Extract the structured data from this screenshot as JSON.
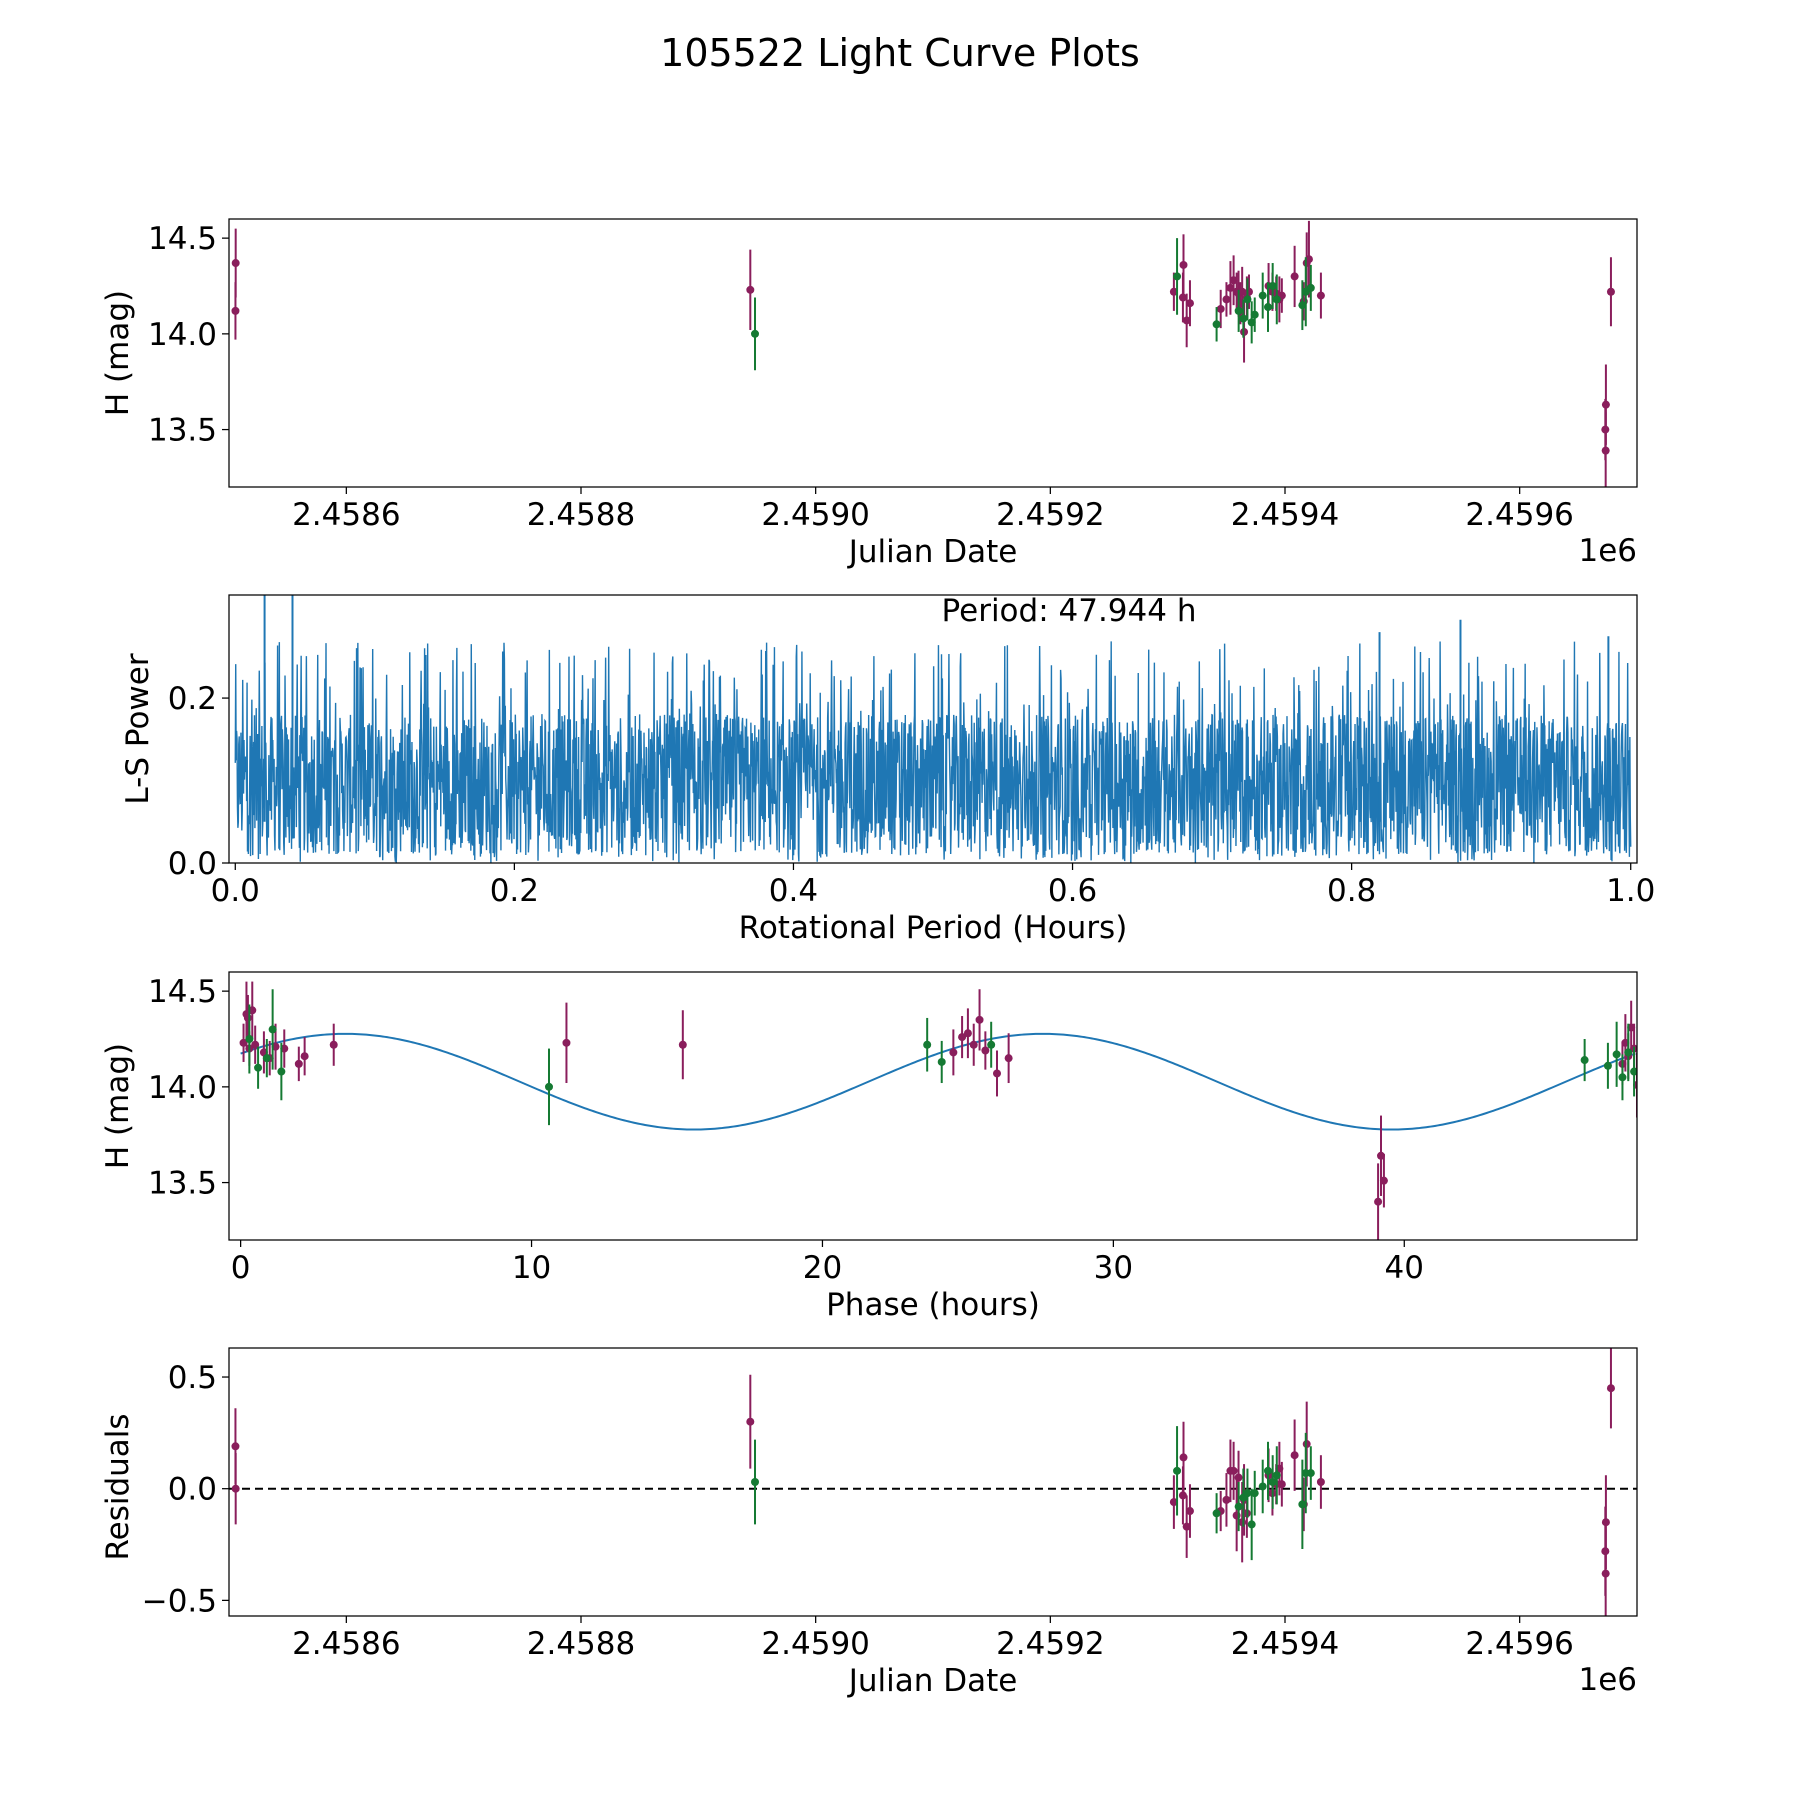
{
  "title": "105522 Light Curve Plots",
  "colors": {
    "magenta": "#8a1e5c",
    "green": "#157a33",
    "blue": "#1f77b4",
    "zero_line": "#000000"
  },
  "chart_data": [
    {
      "id": "jd",
      "type": "scatter",
      "title": "",
      "xlabel": "Julian Date",
      "ylabel": "H (mag)",
      "x_offset_label": "1e6",
      "x_unit": "days offset from 2458400",
      "xlim": [
        45,
        1245
      ],
      "ylim": [
        13.2,
        14.6
      ],
      "xticks": [
        {
          "value": 145,
          "label": "2.4586"
        },
        {
          "value": 345,
          "label": "2.4588"
        },
        {
          "value": 545,
          "label": "2.4590"
        },
        {
          "value": 745,
          "label": "2.4592"
        },
        {
          "value": 945,
          "label": "2.4594"
        },
        {
          "value": 1145,
          "label": "2.4596"
        }
      ],
      "yticks": [
        {
          "value": 13.5,
          "label": "13.5"
        },
        {
          "value": 14.0,
          "label": "14.0"
        },
        {
          "value": 14.5,
          "label": "14.5"
        }
      ],
      "series": [
        {
          "name": "magenta",
          "color_key": "magenta",
          "points": [
            [
              50.7,
              14.37,
              0.18
            ],
            [
              50.5,
              14.12,
              0.15
            ],
            [
              489.3,
              14.23,
              0.21
            ],
            [
              850.3,
              14.22,
              0.1
            ],
            [
              858.0,
              14.19,
              0.13
            ],
            [
              858.5,
              14.36,
              0.16
            ],
            [
              861.2,
              14.07,
              0.14
            ],
            [
              864.0,
              14.16,
              0.12
            ],
            [
              890.2,
              14.13,
              0.1
            ],
            [
              895.1,
              14.18,
              0.09
            ],
            [
              898.5,
              14.24,
              0.14
            ],
            [
              901.2,
              14.28,
              0.13
            ],
            [
              903.8,
              14.22,
              0.1
            ],
            [
              905.4,
              14.21,
              0.12
            ],
            [
              907.0,
              14.16,
              0.11
            ],
            [
              908.5,
              14.22,
              0.13
            ],
            [
              910.1,
              14.01,
              0.16
            ],
            [
              912.5,
              14.19,
              0.11
            ],
            [
              914.3,
              14.22,
              0.09
            ],
            [
              931.0,
              14.25,
              0.12
            ],
            [
              934.3,
              14.22,
              0.1
            ],
            [
              937.5,
              14.21,
              0.09
            ],
            [
              940.2,
              14.18,
              0.12
            ],
            [
              942.3,
              14.2,
              0.09
            ],
            [
              953.2,
              14.3,
              0.16
            ],
            [
              961.0,
              14.17,
              0.1
            ],
            [
              963.5,
              14.37,
              0.16
            ],
            [
              965.4,
              14.39,
              0.2
            ],
            [
              975.6,
              14.2,
              0.12
            ],
            [
              1218.5,
              13.63,
              0.21
            ],
            [
              1218.0,
              13.5,
              0.16
            ],
            [
              1218.3,
              13.39,
              0.2
            ],
            [
              1222.8,
              14.22,
              0.18
            ]
          ]
        },
        {
          "name": "green",
          "color_key": "green",
          "points": [
            [
              493.3,
              14.0,
              0.19
            ],
            [
              853.0,
              14.3,
              0.2
            ],
            [
              886.7,
              14.05,
              0.09
            ],
            [
              905.5,
              14.12,
              0.11
            ],
            [
              909.5,
              14.08,
              0.1
            ],
            [
              913.0,
              14.18,
              0.11
            ],
            [
              916.6,
              14.06,
              0.11
            ],
            [
              919.2,
              14.1,
              0.09
            ],
            [
              926.0,
              14.2,
              0.12
            ],
            [
              930.5,
              14.14,
              0.13
            ],
            [
              934.5,
              14.25,
              0.12
            ],
            [
              938.0,
              14.18,
              0.13
            ],
            [
              959.8,
              14.15,
              0.13
            ],
            [
              962.7,
              14.22,
              0.18
            ],
            [
              967.0,
              14.24,
              0.12
            ]
          ]
        }
      ]
    },
    {
      "id": "ls",
      "type": "line",
      "title": "",
      "xlabel": "Rotational Period (Hours)",
      "ylabel": "L-S Power",
      "annotation": "Period: 47.944 h",
      "xlim": [
        -0.0045,
        1.0045
      ],
      "ylim": [
        0,
        0.325
      ],
      "xticks": [
        {
          "value": 0.0,
          "label": "0.0"
        },
        {
          "value": 0.2,
          "label": "0.2"
        },
        {
          "value": 0.4,
          "label": "0.4"
        },
        {
          "value": 0.6,
          "label": "0.6"
        },
        {
          "value": 0.8,
          "label": "0.8"
        },
        {
          "value": 1.0,
          "label": "1.0"
        }
      ],
      "yticks": [
        {
          "value": 0.0,
          "label": "0.0"
        },
        {
          "value": 0.2,
          "label": "0.2"
        }
      ],
      "series": [
        {
          "name": "power",
          "color_key": "blue",
          "sample_count": 3200,
          "typical_range": [
            0.01,
            0.18
          ],
          "upper_envelope": 0.27,
          "peaks": [
            [
              0.021,
              0.325
            ],
            [
              0.041,
              0.325
            ],
            [
              0.82,
              0.28
            ],
            [
              0.878,
              0.295
            ],
            [
              0.984,
              0.275
            ]
          ]
        }
      ]
    },
    {
      "id": "phase",
      "type": "scatter",
      "title": "",
      "xlabel": "Phase (hours)",
      "ylabel": "H (mag)",
      "xlim": [
        -0.4,
        48.0
      ],
      "ylim": [
        13.2,
        14.6
      ],
      "xticks": [
        {
          "value": 0,
          "label": "0"
        },
        {
          "value": 10,
          "label": "10"
        },
        {
          "value": 20,
          "label": "20"
        },
        {
          "value": 30,
          "label": "30"
        },
        {
          "value": 40,
          "label": "40"
        }
      ],
      "yticks": [
        {
          "value": 13.5,
          "label": "13.5"
        },
        {
          "value": 14.0,
          "label": "14.0"
        },
        {
          "value": 14.5,
          "label": "14.5"
        }
      ],
      "model": {
        "type": "sinusoid",
        "color_key": "blue",
        "mean": 14.027,
        "amplitude": 0.25,
        "period": 23.972,
        "peak_phase": 3.6,
        "x_range": [
          0,
          47.944
        ]
      },
      "series": [
        {
          "name": "magenta",
          "color_key": "magenta",
          "points": [
            [
              0.1,
              14.23,
              0.1
            ],
            [
              0.2,
              14.38,
              0.17
            ],
            [
              0.25,
              14.36,
              0.12
            ],
            [
              0.3,
              14.2,
              0.09
            ],
            [
              0.4,
              14.4,
              0.15
            ],
            [
              0.5,
              14.22,
              0.1
            ],
            [
              0.8,
              14.18,
              0.11
            ],
            [
              1.0,
              14.15,
              0.09
            ],
            [
              1.2,
              14.21,
              0.12
            ],
            [
              1.5,
              14.2,
              0.1
            ],
            [
              2.0,
              14.12,
              0.09
            ],
            [
              2.2,
              14.16,
              0.1
            ],
            [
              3.2,
              14.22,
              0.11
            ],
            [
              11.2,
              14.23,
              0.21
            ],
            [
              15.2,
              14.22,
              0.18
            ],
            [
              24.5,
              14.18,
              0.12
            ],
            [
              24.8,
              14.26,
              0.11
            ],
            [
              25.0,
              14.28,
              0.13
            ],
            [
              25.2,
              14.22,
              0.11
            ],
            [
              25.4,
              14.35,
              0.16
            ],
            [
              25.6,
              14.19,
              0.1
            ],
            [
              26.0,
              14.07,
              0.12
            ],
            [
              26.4,
              14.15,
              0.13
            ],
            [
              39.1,
              13.4,
              0.2
            ],
            [
              39.2,
              13.64,
              0.21
            ],
            [
              39.3,
              13.51,
              0.14
            ],
            [
              47.5,
              14.12,
              0.11
            ],
            [
              47.6,
              14.23,
              0.15
            ],
            [
              47.7,
              14.16,
              0.12
            ],
            [
              47.8,
              14.31,
              0.14
            ],
            [
              47.9,
              14.2,
              0.13
            ],
            [
              48.0,
              14.01,
              0.17
            ]
          ]
        },
        {
          "name": "green",
          "color_key": "green",
          "points": [
            [
              0.3,
              14.25,
              0.18
            ],
            [
              0.6,
              14.1,
              0.11
            ],
            [
              0.9,
              14.15,
              0.1
            ],
            [
              1.1,
              14.3,
              0.21
            ],
            [
              1.4,
              14.08,
              0.15
            ],
            [
              10.6,
              14.0,
              0.2
            ],
            [
              23.6,
              14.22,
              0.14
            ],
            [
              24.1,
              14.13,
              0.11
            ],
            [
              25.8,
              14.22,
              0.12
            ],
            [
              46.2,
              14.14,
              0.11
            ],
            [
              47.0,
              14.11,
              0.12
            ],
            [
              47.3,
              14.17,
              0.17
            ],
            [
              47.5,
              14.05,
              0.12
            ],
            [
              47.7,
              14.18,
              0.15
            ],
            [
              47.9,
              14.08,
              0.13
            ]
          ]
        }
      ]
    },
    {
      "id": "residuals",
      "type": "scatter",
      "title": "",
      "xlabel": "Julian Date",
      "ylabel": "Residuals",
      "x_offset_label": "1e6",
      "x_unit": "days offset from 2458400",
      "xlim": [
        45,
        1245
      ],
      "ylim": [
        -0.57,
        0.63
      ],
      "xticks": [
        {
          "value": 145,
          "label": "2.4586"
        },
        {
          "value": 345,
          "label": "2.4588"
        },
        {
          "value": 545,
          "label": "2.4590"
        },
        {
          "value": 745,
          "label": "2.4592"
        },
        {
          "value": 945,
          "label": "2.4594"
        },
        {
          "value": 1145,
          "label": "2.4596"
        }
      ],
      "yticks": [
        {
          "value": -0.5,
          "label": "−0.5"
        },
        {
          "value": 0.0,
          "label": "0.0"
        },
        {
          "value": 0.5,
          "label": "0.5"
        }
      ],
      "reference_line": 0.0,
      "series": [
        {
          "name": "magenta",
          "color_key": "magenta",
          "points": [
            [
              50.5,
              0.19,
              0.17
            ],
            [
              50.7,
              0.0,
              0.16
            ],
            [
              489.3,
              0.3,
              0.21
            ],
            [
              850.3,
              -0.06,
              0.12
            ],
            [
              858.0,
              -0.03,
              0.13
            ],
            [
              858.5,
              0.14,
              0.16
            ],
            [
              861.2,
              -0.17,
              0.14
            ],
            [
              864.0,
              -0.1,
              0.12
            ],
            [
              890.2,
              -0.1,
              0.09
            ],
            [
              895.1,
              -0.05,
              0.12
            ],
            [
              898.5,
              0.08,
              0.14
            ],
            [
              901.2,
              0.08,
              0.13
            ],
            [
              903.8,
              -0.12,
              0.16
            ],
            [
              905.4,
              0.05,
              0.12
            ],
            [
              908.5,
              -0.15,
              0.18
            ],
            [
              910.1,
              -0.05,
              0.16
            ],
            [
              912.5,
              -0.11,
              0.11
            ],
            [
              931.0,
              0.06,
              0.12
            ],
            [
              934.3,
              -0.02,
              0.1
            ],
            [
              937.5,
              0.02,
              0.09
            ],
            [
              940.2,
              0.09,
              0.12
            ],
            [
              942.3,
              0.02,
              0.1
            ],
            [
              953.2,
              0.15,
              0.16
            ],
            [
              961.0,
              -0.07,
              0.12
            ],
            [
              963.5,
              0.2,
              0.19
            ],
            [
              975.6,
              0.03,
              0.12
            ],
            [
              1218.5,
              -0.15,
              0.21
            ],
            [
              1218.0,
              -0.28,
              0.2
            ],
            [
              1218.3,
              -0.38,
              0.2
            ],
            [
              1222.8,
              0.45,
              0.18
            ]
          ]
        },
        {
          "name": "green",
          "color_key": "green",
          "points": [
            [
              493.3,
              0.03,
              0.19
            ],
            [
              853.0,
              0.08,
              0.2
            ],
            [
              886.7,
              -0.11,
              0.09
            ],
            [
              905.5,
              -0.08,
              0.11
            ],
            [
              909.5,
              -0.04,
              0.13
            ],
            [
              913.0,
              -0.02,
              0.11
            ],
            [
              916.6,
              -0.16,
              0.16
            ],
            [
              919.2,
              -0.02,
              0.1
            ],
            [
              926.0,
              0.01,
              0.12
            ],
            [
              930.5,
              0.08,
              0.13
            ],
            [
              934.5,
              0.03,
              0.12
            ],
            [
              938.0,
              0.06,
              0.13
            ],
            [
              959.8,
              -0.07,
              0.2
            ],
            [
              962.7,
              0.07,
              0.18
            ],
            [
              967.0,
              0.07,
              0.12
            ]
          ]
        }
      ]
    }
  ]
}
